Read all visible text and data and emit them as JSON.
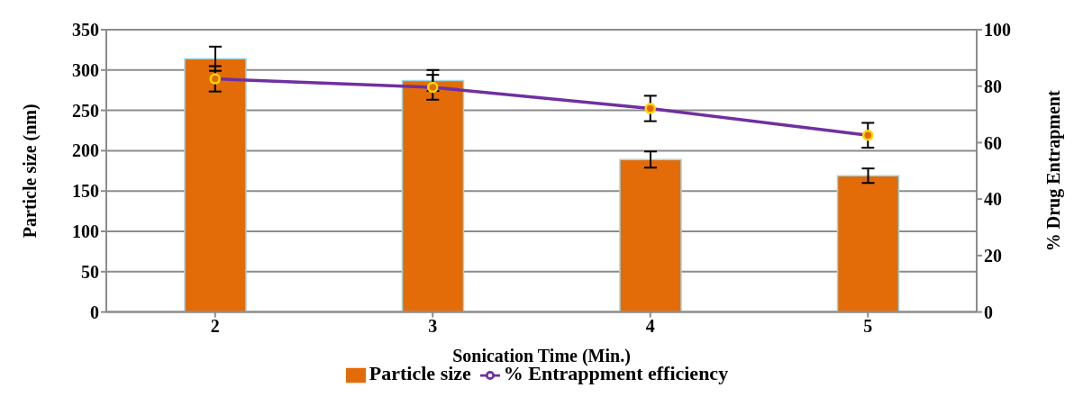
{
  "chart_data": {
    "type": "bar",
    "xlabel": "Sonication Time  (Min.)",
    "ylabel": "Particle size (nm)",
    "y2label": "% Drug Entrapment",
    "categories": [
      "2",
      "3",
      "4",
      "5"
    ],
    "series": [
      {
        "name": "Particle size",
        "color": "#e36c09",
        "values": [
          314,
          287,
          189,
          169
        ],
        "errors": [
          15,
          13,
          10,
          9
        ]
      },
      {
        "name": "% Entrappment efficiency",
        "type": "line",
        "axis": "y2",
        "color": "#7030a0",
        "values": [
          82.6,
          79.6,
          72.1,
          62.6
        ],
        "errors": [
          4.5,
          4.4,
          4.5,
          4.4
        ]
      }
    ],
    "ylim": [
      0,
      350
    ],
    "yticks": [
      0,
      50,
      100,
      150,
      200,
      250,
      300,
      350
    ],
    "y2lim": [
      0,
      100
    ],
    "y2ticks": [
      0,
      20,
      40,
      60,
      80,
      100
    ],
    "grid": "y",
    "legend": "bottom",
    "marker": "circle",
    "line_style": "solid"
  }
}
